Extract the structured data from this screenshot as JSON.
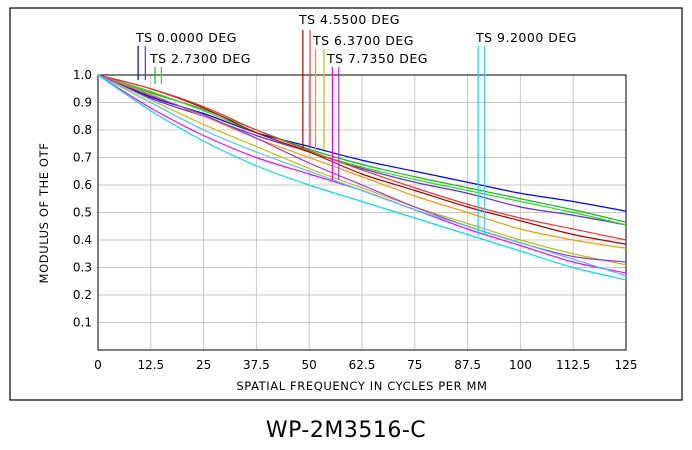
{
  "chart_data": {
    "type": "line",
    "title": "",
    "caption": "WP-2M3516-C",
    "xlabel": "SPATIAL FREQUENCY IN CYCLES PER MM",
    "ylabel": "MODULUS OF THE OTF",
    "xlim": [
      0,
      125
    ],
    "ylim": [
      0,
      1.0
    ],
    "x_ticks": [
      0,
      12.5,
      25,
      37.5,
      50,
      62.5,
      75,
      87.5,
      100,
      112.5,
      125
    ],
    "x_tick_labels": [
      "0",
      "12.5",
      "25",
      "37.5",
      "50",
      "62.5",
      "75",
      "87.5",
      "100",
      "112.5",
      "125"
    ],
    "y_ticks": [
      0.1,
      0.2,
      0.3,
      0.4,
      0.5,
      0.6,
      0.7,
      0.8,
      0.9,
      1.0
    ],
    "y_tick_labels": [
      "0.1",
      "0.2",
      "0.3",
      "0.4",
      "0.5",
      "0.6",
      "0.7",
      "0.8",
      "0.9",
      "1.0"
    ],
    "grid": true,
    "x": [
      0,
      12.5,
      25,
      37.5,
      50,
      62.5,
      75,
      87.5,
      100,
      112.5,
      125
    ],
    "series": [
      {
        "color": "#0000ff",
        "values": [
          1.0,
          0.92,
          0.86,
          0.79,
          0.74,
          0.69,
          0.65,
          0.61,
          0.57,
          0.54,
          0.505
        ]
      },
      {
        "color": "#6a2bd9",
        "values": [
          1.0,
          0.915,
          0.85,
          0.78,
          0.72,
          0.66,
          0.61,
          0.57,
          0.52,
          0.49,
          0.455
        ]
      },
      {
        "color": "#00c800",
        "values": [
          1.0,
          0.935,
          0.875,
          0.8,
          0.73,
          0.675,
          0.63,
          0.59,
          0.55,
          0.51,
          0.465
        ]
      },
      {
        "color": "#2fd62f",
        "values": [
          1.0,
          0.94,
          0.87,
          0.79,
          0.72,
          0.665,
          0.62,
          0.58,
          0.54,
          0.5,
          0.455
        ]
      },
      {
        "color": "#b00000",
        "values": [
          1.0,
          0.95,
          0.88,
          0.79,
          0.72,
          0.64,
          0.58,
          0.52,
          0.47,
          0.42,
          0.385
        ]
      },
      {
        "color": "#ff3030",
        "values": [
          1.0,
          0.95,
          0.885,
          0.8,
          0.725,
          0.655,
          0.59,
          0.53,
          0.48,
          0.44,
          0.4
        ]
      },
      {
        "color": "#e8a000",
        "values": [
          1.0,
          0.93,
          0.85,
          0.77,
          0.7,
          0.63,
          0.56,
          0.5,
          0.44,
          0.4,
          0.37
        ]
      },
      {
        "color": "#c0c000",
        "values": [
          1.0,
          0.91,
          0.82,
          0.74,
          0.66,
          0.59,
          0.52,
          0.46,
          0.4,
          0.35,
          0.31
        ]
      },
      {
        "color": "#ff00ff",
        "values": [
          1.0,
          0.88,
          0.78,
          0.7,
          0.64,
          0.58,
          0.51,
          0.44,
          0.38,
          0.32,
          0.28
        ]
      },
      {
        "color": "#a030ff",
        "values": [
          1.0,
          0.925,
          0.855,
          0.77,
          0.68,
          0.6,
          0.52,
          0.45,
          0.39,
          0.34,
          0.32
        ]
      },
      {
        "color": "#00e0e0",
        "values": [
          1.0,
          0.87,
          0.76,
          0.67,
          0.6,
          0.54,
          0.48,
          0.42,
          0.36,
          0.3,
          0.255
        ]
      },
      {
        "color": "#40c8ff",
        "values": [
          1.0,
          0.9,
          0.8,
          0.72,
          0.65,
          0.58,
          0.51,
          0.45,
          0.39,
          0.33,
          0.27
        ]
      }
    ],
    "field_markers": [
      {
        "label": "TS  0.0000  DEG",
        "x": [
          9.5,
          11.2
        ],
        "colors": [
          "#0000ff",
          "#6a2bd9"
        ]
      },
      {
        "label": "TS  2.7300  DEG",
        "x": [
          13.5,
          15.0
        ],
        "colors": [
          "#00c800",
          "#2fd62f"
        ]
      },
      {
        "label": "TS  4.5500  DEG",
        "x": [
          48.5,
          50.2
        ],
        "colors": [
          "#b00000",
          "#ff3030"
        ]
      },
      {
        "label": "TS  6.3700  DEG",
        "x": [
          51.5,
          53.5
        ],
        "colors": [
          "#e8a000",
          "#c0c000"
        ]
      },
      {
        "label": "TS  7.7350  DEG",
        "x": [
          55.5,
          57.0
        ],
        "colors": [
          "#ff00ff",
          "#a030ff"
        ]
      },
      {
        "label": "TS  9.2000  DEG",
        "x": [
          90.0,
          91.5
        ],
        "colors": [
          "#00e0e0",
          "#40c8ff"
        ]
      }
    ]
  }
}
